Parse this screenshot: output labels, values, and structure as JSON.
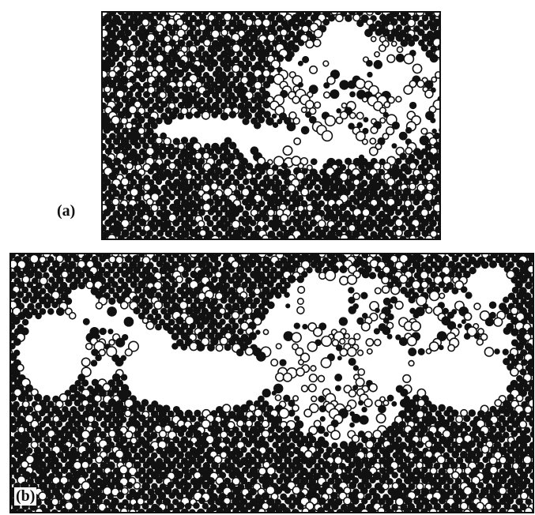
{
  "figure": {
    "panels": [
      {
        "label": "(a)",
        "description_color": "#111111"
      },
      {
        "label": "(b)",
        "description_color": "#111111"
      }
    ],
    "colors": {
      "atom": "#111111",
      "background": "#ffffff",
      "void": "#ffffff"
    }
  }
}
